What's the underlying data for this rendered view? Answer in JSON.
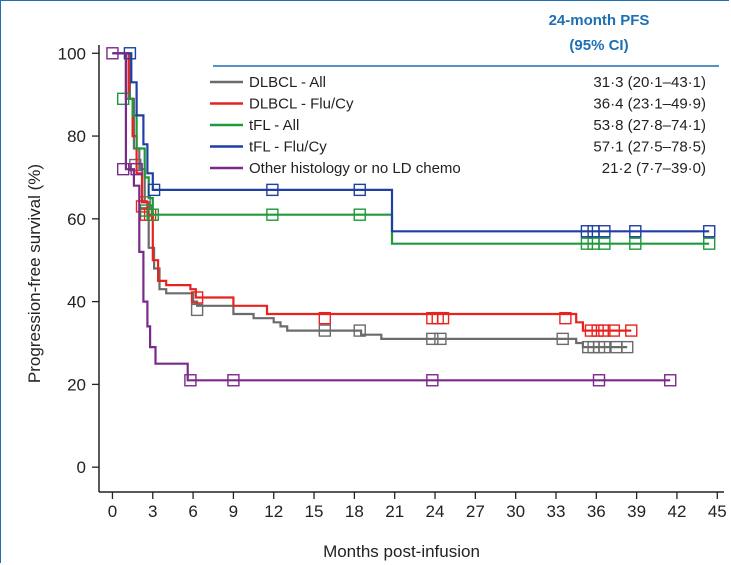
{
  "chart_data": {
    "type": "line",
    "step": true,
    "xlabel": "Months post-infusion",
    "ylabel": "Progression-free survival (%)",
    "xlim": [
      -1,
      45.5
    ],
    "ylim": [
      -6,
      102
    ],
    "xticks": [
      0,
      3,
      6,
      9,
      12,
      15,
      18,
      21,
      24,
      27,
      30,
      33,
      36,
      39,
      42,
      45
    ],
    "yticks": [
      0,
      20,
      40,
      60,
      80,
      100
    ],
    "grid": false,
    "legend_position": "top-right",
    "table_header": [
      "24-month PFS",
      "(95% CI)"
    ],
    "series": [
      {
        "name": "DLBCL - All",
        "color": "#6b6b6b",
        "pfs": "31·3 (20·1–43·1)",
        "points": [
          [
            0,
            100
          ],
          [
            1.0,
            100
          ],
          [
            1.3,
            89
          ],
          [
            1.6,
            77
          ],
          [
            2.0,
            72
          ],
          [
            2.4,
            64
          ],
          [
            2.7,
            53
          ],
          [
            3.1,
            48
          ],
          [
            3.5,
            43
          ],
          [
            4.0,
            42
          ],
          [
            6.0,
            40
          ],
          [
            6.3,
            39
          ],
          [
            9.0,
            37
          ],
          [
            10.5,
            36
          ],
          [
            12.0,
            35
          ],
          [
            12.5,
            34
          ],
          [
            13.0,
            33
          ],
          [
            18.0,
            33
          ],
          [
            18.5,
            32
          ],
          [
            20.0,
            31
          ],
          [
            34.0,
            31
          ],
          [
            34.5,
            30
          ],
          [
            35.0,
            29
          ],
          [
            38.3,
            29
          ]
        ],
        "censor": [
          [
            1.7,
            73
          ],
          [
            2.4,
            64
          ],
          [
            6.3,
            38
          ],
          [
            15.8,
            33
          ],
          [
            18.4,
            33
          ],
          [
            23.8,
            31
          ],
          [
            24.4,
            31
          ],
          [
            33.5,
            31
          ],
          [
            35.4,
            29
          ],
          [
            35.8,
            29
          ],
          [
            36.2,
            29
          ],
          [
            36.6,
            29
          ],
          [
            37.5,
            29
          ],
          [
            38.3,
            29
          ]
        ]
      },
      {
        "name": "DLBCL - Flu/Cy",
        "color": "#e8231f",
        "pfs": "36·4 (23·1–49·9)",
        "points": [
          [
            0,
            100
          ],
          [
            1.0,
            100
          ],
          [
            1.2,
            89
          ],
          [
            1.5,
            80
          ],
          [
            1.8,
            71
          ],
          [
            2.2,
            64
          ],
          [
            2.6,
            61
          ],
          [
            3.0,
            50
          ],
          [
            3.4,
            45
          ],
          [
            4.0,
            44
          ],
          [
            5.8,
            43
          ],
          [
            6.2,
            41
          ],
          [
            9.0,
            39
          ],
          [
            11.5,
            37
          ],
          [
            12.0,
            37
          ],
          [
            34.0,
            37
          ],
          [
            34.5,
            35
          ],
          [
            35.0,
            33
          ],
          [
            38.6,
            33
          ]
        ],
        "censor": [
          [
            2.2,
            63
          ],
          [
            2.5,
            61
          ],
          [
            2.8,
            61
          ],
          [
            6.3,
            41
          ],
          [
            15.8,
            36
          ],
          [
            23.8,
            36
          ],
          [
            24.2,
            36
          ],
          [
            24.6,
            36
          ],
          [
            33.7,
            36
          ],
          [
            35.6,
            33
          ],
          [
            36.1,
            33
          ],
          [
            36.6,
            33
          ],
          [
            37.3,
            33
          ],
          [
            38.6,
            33
          ]
        ]
      },
      {
        "name": "tFL - All",
        "color": "#1f9a3a",
        "pfs": "53·8 (27·8–74·1)",
        "points": [
          [
            0,
            100
          ],
          [
            0.8,
            100
          ],
          [
            1.0,
            89
          ],
          [
            1.5,
            85
          ],
          [
            1.8,
            77
          ],
          [
            2.2,
            77
          ],
          [
            2.4,
            70
          ],
          [
            2.7,
            65
          ],
          [
            3.0,
            61
          ],
          [
            20.8,
            61
          ],
          [
            20.8,
            54
          ],
          [
            44.4,
            54
          ]
        ],
        "censor": [
          [
            0.8,
            89
          ],
          [
            2.5,
            62
          ],
          [
            3.0,
            61
          ],
          [
            11.9,
            61
          ],
          [
            18.4,
            61
          ],
          [
            35.3,
            54
          ],
          [
            35.8,
            54
          ],
          [
            36.6,
            54
          ],
          [
            38.9,
            54
          ],
          [
            44.4,
            54
          ]
        ]
      },
      {
        "name": "tFL - Flu/Cy",
        "color": "#1f3fa5",
        "pfs": "57·1 (27·5–78·5)",
        "points": [
          [
            0,
            100
          ],
          [
            1.2,
            100
          ],
          [
            1.4,
            93
          ],
          [
            1.8,
            85
          ],
          [
            2.3,
            78
          ],
          [
            2.6,
            71
          ],
          [
            3.0,
            67
          ],
          [
            20.8,
            67
          ],
          [
            20.8,
            57
          ],
          [
            44.4,
            57
          ]
        ],
        "censor": [
          [
            1.3,
            100
          ],
          [
            3.1,
            67
          ],
          [
            11.9,
            67
          ],
          [
            18.4,
            67
          ],
          [
            35.3,
            57
          ],
          [
            35.8,
            57
          ],
          [
            36.6,
            57
          ],
          [
            38.9,
            57
          ],
          [
            44.4,
            57
          ]
        ]
      },
      {
        "name": "Other histology or no LD chemo",
        "color": "#7b2a8a",
        "pfs": "21·2 (7·7–39·0)",
        "points": [
          [
            0,
            100
          ],
          [
            0.8,
            100
          ],
          [
            1.0,
            72
          ],
          [
            1.6,
            68
          ],
          [
            2.0,
            52
          ],
          [
            2.3,
            40
          ],
          [
            2.6,
            34
          ],
          [
            2.8,
            29
          ],
          [
            3.2,
            25
          ],
          [
            5.6,
            25
          ],
          [
            5.6,
            21
          ],
          [
            41.5,
            21
          ]
        ],
        "censor": [
          [
            0,
            100
          ],
          [
            0.8,
            72
          ],
          [
            1.8,
            72
          ],
          [
            5.8,
            21
          ],
          [
            9.0,
            21
          ],
          [
            23.8,
            21
          ],
          [
            36.2,
            21
          ],
          [
            41.5,
            21
          ]
        ]
      }
    ]
  }
}
